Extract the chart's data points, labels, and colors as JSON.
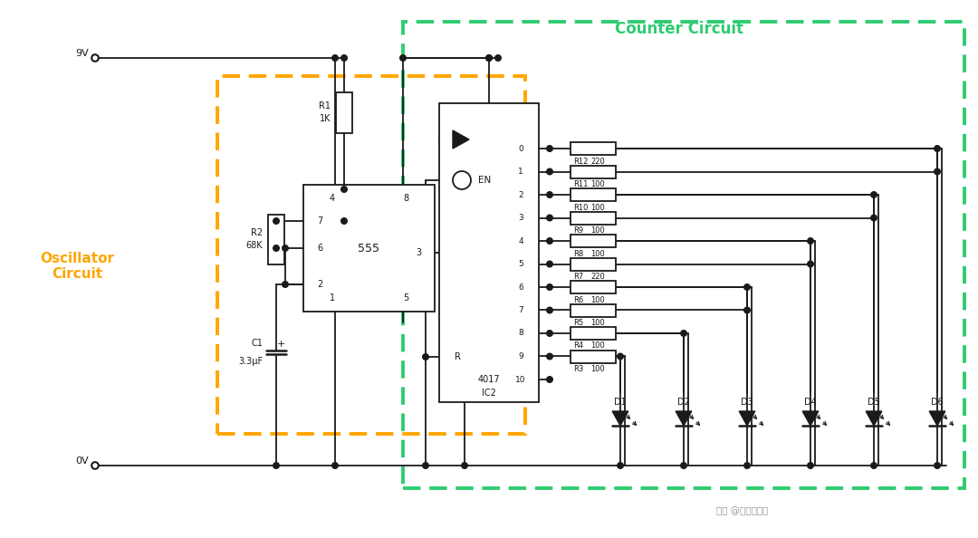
{
  "bg": "#ffffff",
  "lc": "#1a1a1a",
  "orange": "#FFA500",
  "green": "#2ECC71",
  "fw": 10.8,
  "fh": 5.94,
  "xmax": 108.0,
  "ymax": 59.4,
  "osc_label": "Oscillator\nCircuit",
  "ctr_label": "Counter Circuit",
  "resistors": [
    [
      0,
      "R12",
      "220",
      6
    ],
    [
      1,
      "R11",
      "100",
      6
    ],
    [
      2,
      "R10",
      "100",
      5
    ],
    [
      3,
      "R9",
      "100",
      5
    ],
    [
      4,
      "R8",
      "100",
      4
    ],
    [
      5,
      "R7",
      "220",
      4
    ],
    [
      6,
      "R6",
      "100",
      3
    ],
    [
      7,
      "R5",
      "100",
      3
    ],
    [
      8,
      "R4",
      "100",
      2
    ],
    [
      9,
      "R3",
      "100",
      1
    ]
  ],
  "led_labels": [
    "D1",
    "D2",
    "D3",
    "D4",
    "D5",
    "D6"
  ]
}
